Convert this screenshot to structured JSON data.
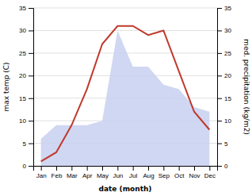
{
  "chart_data": {
    "type": "line",
    "categories": [
      "Jan",
      "Feb",
      "Mar",
      "Apr",
      "May",
      "Jun",
      "Jul",
      "Aug",
      "Sep",
      "Oct",
      "Nov",
      "Dec"
    ],
    "series": [
      {
        "type": "area",
        "axis": "y2",
        "color": "#c8d0f0",
        "values": [
          6,
          9,
          9,
          9,
          10,
          30,
          22,
          22,
          18,
          17,
          13,
          12
        ]
      },
      {
        "type": "line",
        "color": "#c0392b",
        "values": [
          1,
          3,
          9,
          17,
          27,
          31,
          31,
          29,
          30,
          21,
          12,
          8
        ]
      }
    ],
    "xlabel": "date (month)",
    "ylabel": "max temp (C)",
    "y2label": "med. precipitation (kg/m2)",
    "ylim": [
      0,
      35
    ],
    "yticks": [
      0,
      5,
      10,
      15,
      20,
      25,
      30,
      35
    ],
    "y2lim": [
      0,
      35
    ],
    "y2ticks": [
      0,
      5,
      10,
      15,
      20,
      25,
      30,
      35
    ],
    "grid": true
  }
}
